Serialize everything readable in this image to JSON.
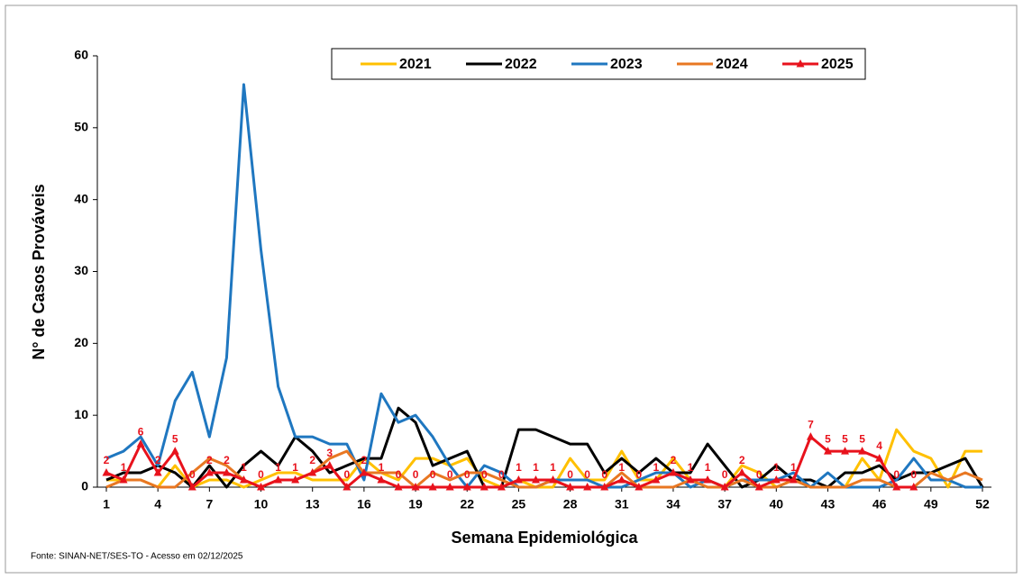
{
  "chart_data": {
    "type": "line",
    "x": [
      1,
      2,
      3,
      4,
      5,
      6,
      7,
      8,
      9,
      10,
      11,
      12,
      13,
      14,
      15,
      16,
      17,
      18,
      19,
      20,
      21,
      22,
      23,
      24,
      25,
      26,
      27,
      28,
      29,
      30,
      31,
      32,
      33,
      34,
      35,
      36,
      37,
      38,
      39,
      40,
      41,
      42,
      43,
      44,
      45,
      46,
      47,
      48,
      49,
      50,
      51,
      52
    ],
    "xlim": [
      1,
      52
    ],
    "xticks": [
      1,
      4,
      7,
      10,
      13,
      16,
      19,
      22,
      25,
      28,
      31,
      34,
      37,
      40,
      43,
      46,
      49,
      52
    ],
    "ylim": [
      0,
      60
    ],
    "yticks": [
      0,
      10,
      20,
      30,
      40,
      50,
      60
    ],
    "xlabel": "Semana Epidemiológica",
    "ylabel": "N° de Casos Prováveis",
    "source": "Fonte: SINAN-NET/SES-TO - Acesso em  02/12/2025",
    "legend": "top",
    "grid": false,
    "series": [
      {
        "name": "2021",
        "color": "#ffc000",
        "values": [
          1,
          1,
          1,
          0,
          3,
          0,
          1,
          1,
          0,
          1,
          2,
          2,
          1,
          1,
          1,
          4,
          2,
          1,
          4,
          4,
          3,
          4,
          1,
          0,
          1,
          0,
          0,
          4,
          1,
          1,
          5,
          1,
          1,
          4,
          1,
          1,
          0,
          3,
          2,
          0,
          1,
          0,
          0,
          0,
          4,
          1,
          8,
          5,
          4,
          0,
          5,
          5
        ]
      },
      {
        "name": "2022",
        "color": "#000000",
        "values": [
          1,
          2,
          2,
          3,
          2,
          0,
          3,
          0,
          3,
          5,
          3,
          7,
          5,
          2,
          3,
          4,
          4,
          11,
          9,
          3,
          4,
          5,
          0,
          0,
          8,
          8,
          7,
          6,
          6,
          2,
          4,
          2,
          4,
          2,
          2,
          6,
          3,
          0,
          1,
          3,
          1,
          1,
          0,
          2,
          2,
          3,
          1,
          2,
          2,
          3,
          4,
          0
        ]
      },
      {
        "name": "2023",
        "color": "#1f77c0",
        "values": [
          4,
          5,
          7,
          3,
          12,
          16,
          7,
          18,
          56,
          33,
          14,
          7,
          7,
          6,
          6,
          1,
          13,
          9,
          10,
          7,
          3,
          0,
          3,
          2,
          0,
          0,
          1,
          1,
          1,
          0,
          0,
          1,
          2,
          2,
          0,
          1,
          0,
          1,
          1,
          1,
          2,
          0,
          2,
          0,
          0,
          0,
          1,
          4,
          1,
          1,
          0,
          0
        ]
      },
      {
        "name": "2024",
        "color": "#e87722",
        "values": [
          0,
          1,
          1,
          0,
          0,
          2,
          4,
          3,
          1,
          0,
          1,
          1,
          2,
          4,
          5,
          2,
          2,
          2,
          0,
          2,
          1,
          2,
          2,
          1,
          0,
          0,
          1,
          0,
          0,
          0,
          2,
          0,
          0,
          0,
          1,
          0,
          0,
          1,
          0,
          0,
          1,
          0,
          0,
          0,
          1,
          1,
          0,
          0,
          2,
          1,
          2,
          1
        ]
      },
      {
        "name": "2025",
        "color": "#e8121c",
        "marker": "triangle",
        "data_labels": true,
        "values": [
          2,
          1,
          6,
          2,
          5,
          0,
          2,
          2,
          1,
          0,
          1,
          1,
          2,
          3,
          0,
          2,
          1,
          0,
          0,
          0,
          0,
          0,
          0,
          0,
          1,
          1,
          1,
          0,
          0,
          0,
          1,
          0,
          1,
          2,
          1,
          1,
          0,
          2,
          0,
          1,
          1,
          7,
          5,
          5,
          5,
          4,
          0,
          0,
          null,
          null,
          null,
          null
        ]
      }
    ]
  }
}
